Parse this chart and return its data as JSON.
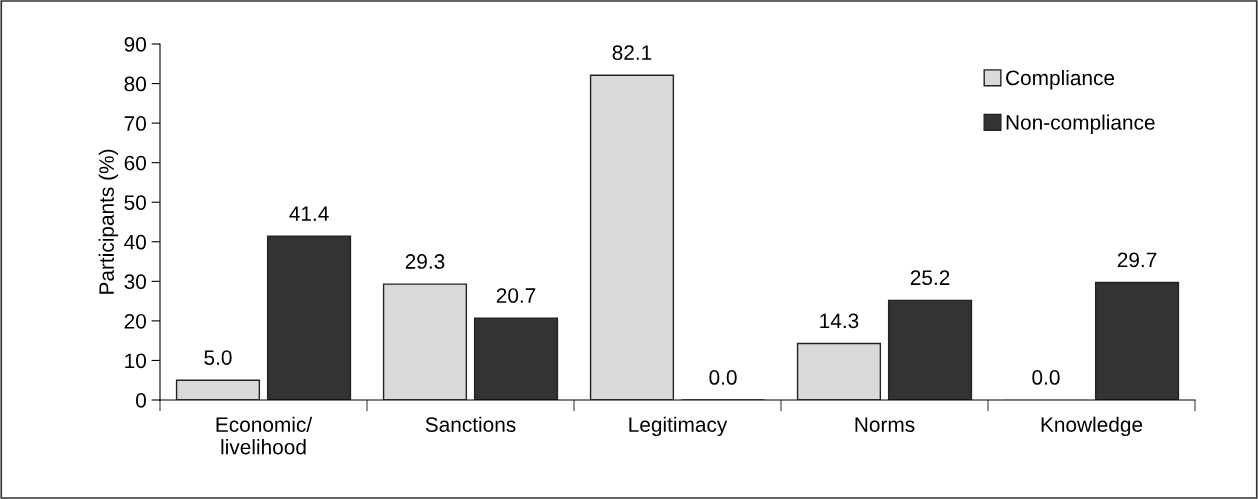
{
  "chart_data": {
    "type": "bar",
    "ylabel": "Participants (%)",
    "categories": [
      "Economic/\nlivelihood",
      "Sanctions",
      "Legitimacy",
      "Norms",
      "Knowledge"
    ],
    "series": [
      {
        "name": "Compliance",
        "color": "#d9d9d9",
        "values": [
          5.0,
          29.3,
          82.1,
          14.3,
          0.0
        ],
        "value_labels": [
          "5.0",
          "29.3",
          "82.1",
          "14.3",
          "0.0"
        ]
      },
      {
        "name": "Non-compliance",
        "color": "#333333",
        "values": [
          41.4,
          20.7,
          0.0,
          25.2,
          29.7
        ],
        "value_labels": [
          "41.4",
          "20.7",
          "0.0",
          "25.2",
          "29.7"
        ]
      }
    ],
    "ylim": [
      0,
      90
    ],
    "yticks": [
      0,
      10,
      20,
      30,
      40,
      50,
      60,
      70,
      80,
      90
    ],
    "grid": false,
    "legend": "top right"
  }
}
